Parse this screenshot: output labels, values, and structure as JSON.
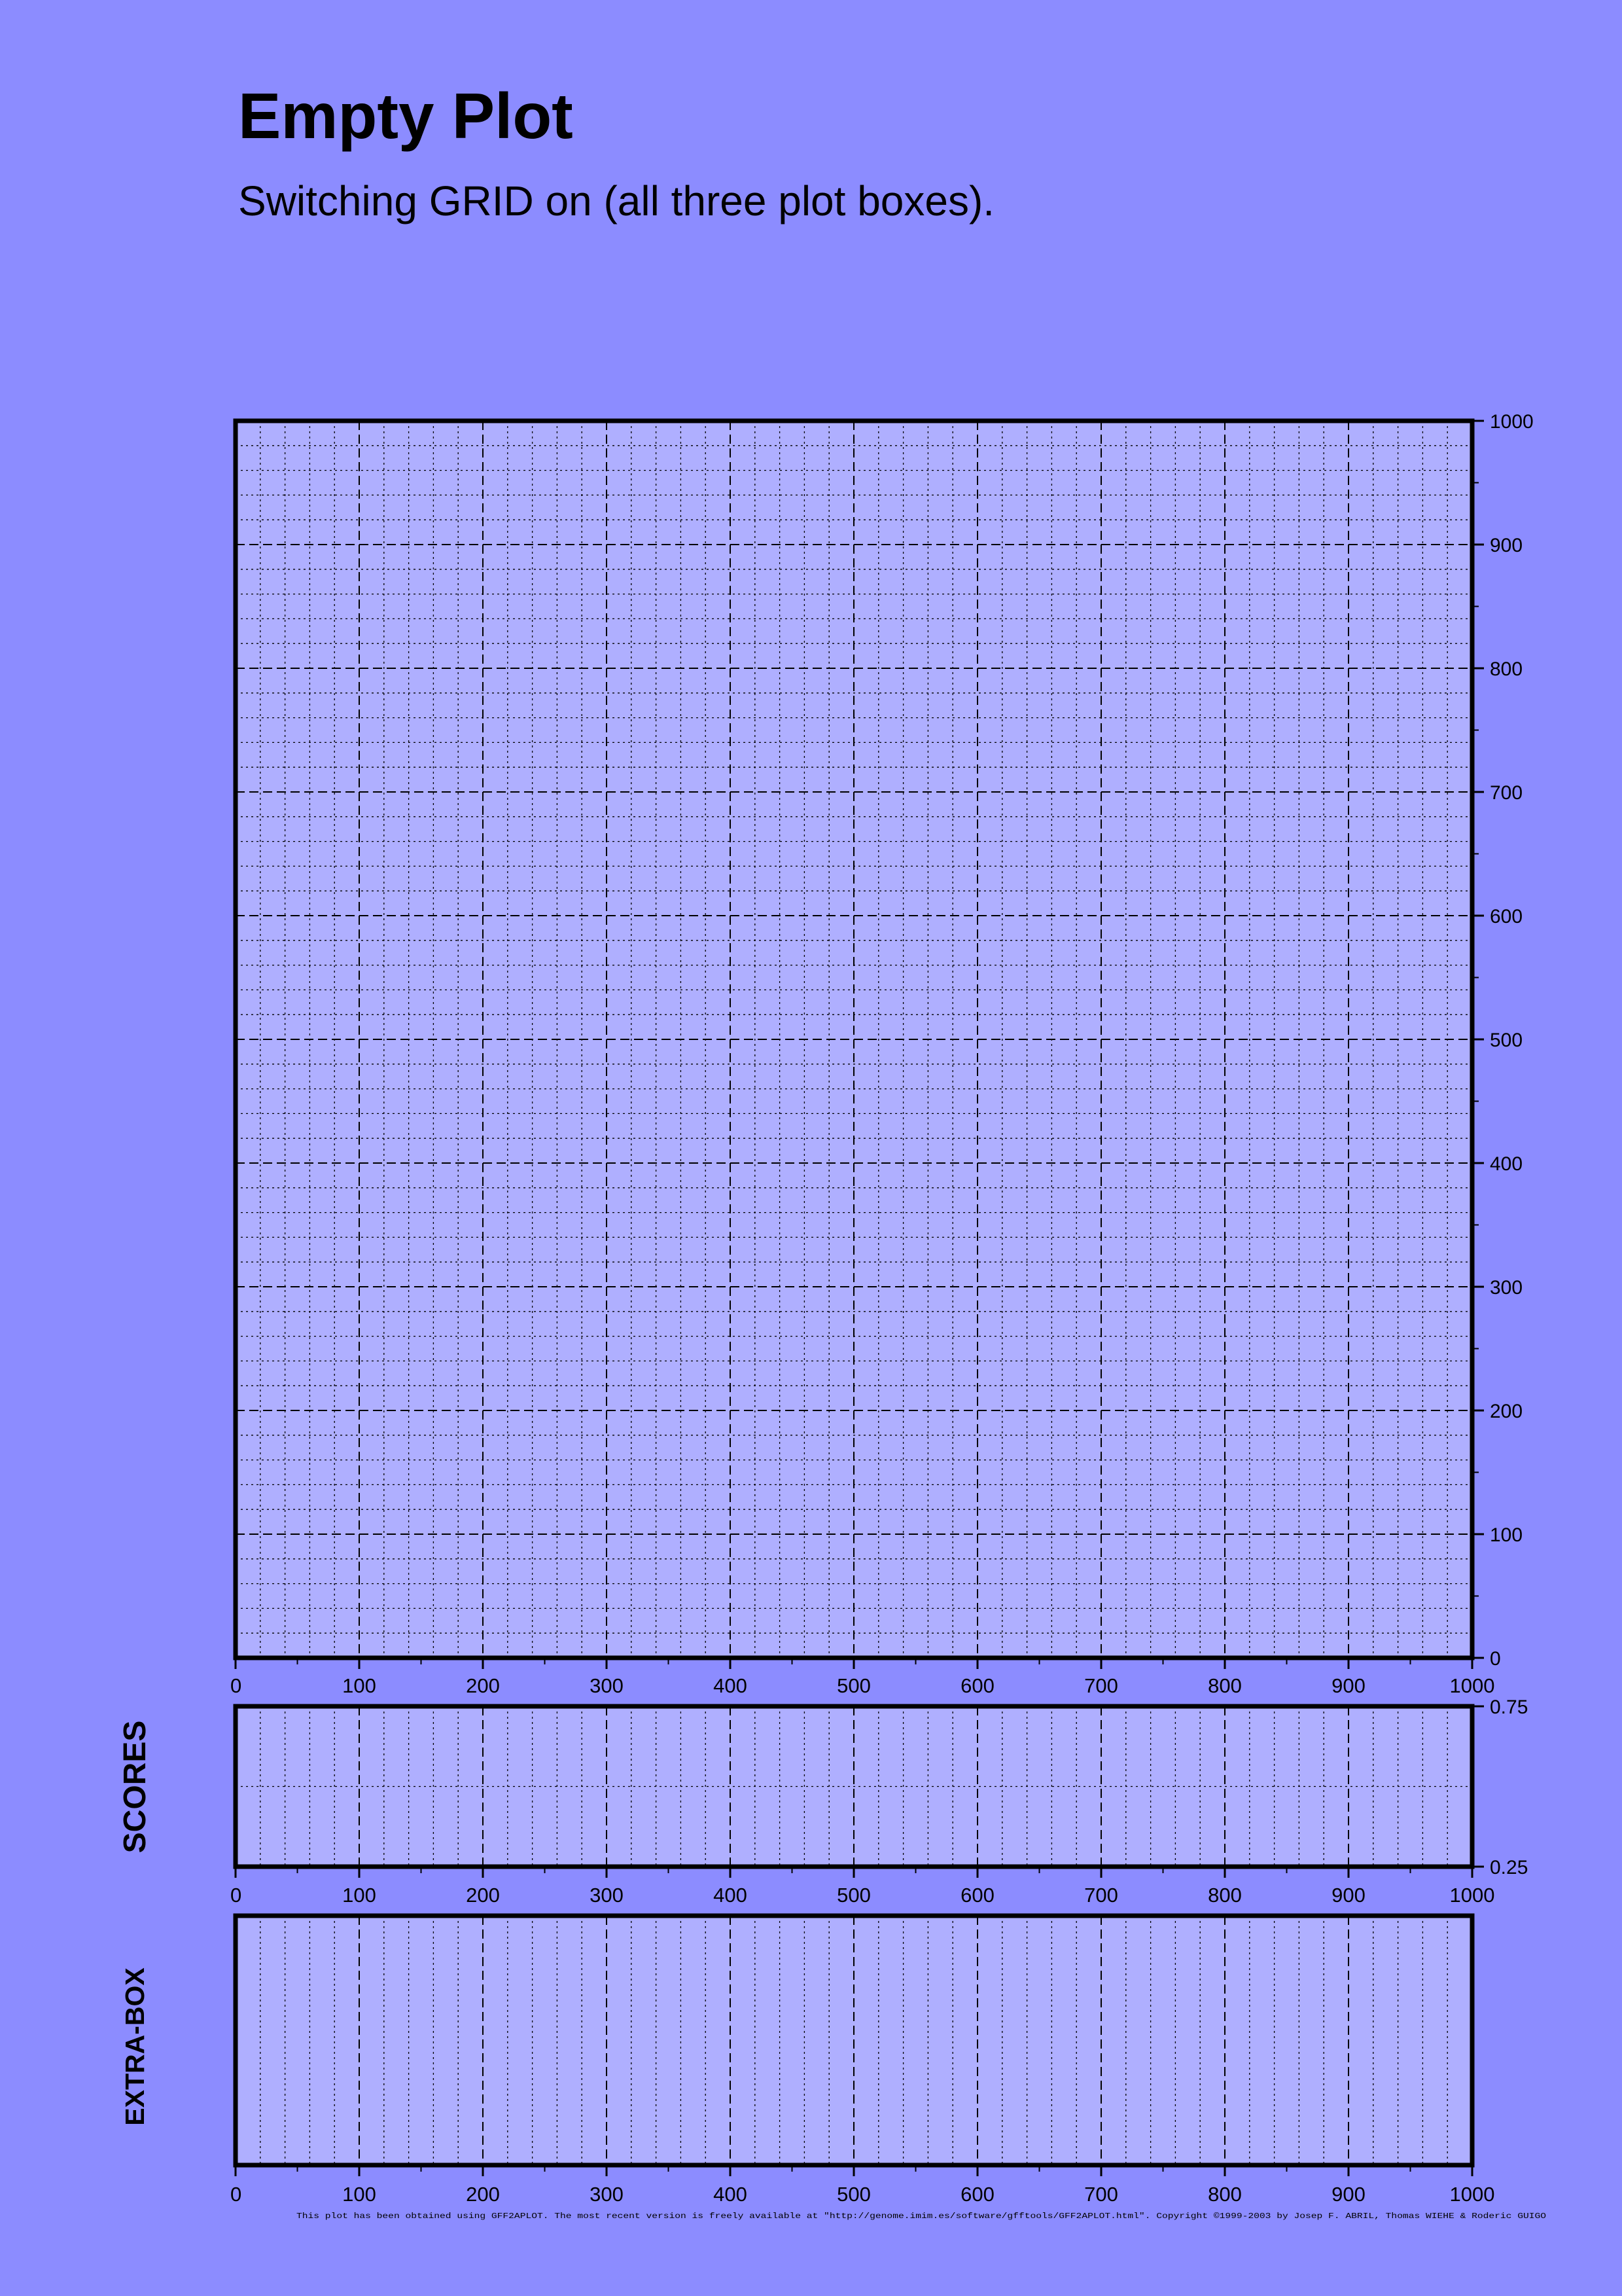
{
  "page": {
    "title": "Empty Plot",
    "subtitle": "Switching GRID on (all three plot boxes).",
    "background_color": "#8c8cff",
    "plot_fill_color": "#afafff",
    "footer": "This plot has been obtained using GFF2APLOT. The most recent version is freely available at \"http://genome.imim.es/software/gfftools/GFF2APLOT.html\". Copyright ©1999-2003 by Josep F. ABRIL, Thomas WIEHE & Roderic GUIGO"
  },
  "chart_data": [
    {
      "id": "main",
      "type": "scatter",
      "title": "",
      "xlabel": "",
      "ylabel": "",
      "xlim": [
        0,
        1000
      ],
      "ylim": [
        0,
        1000
      ],
      "x_ticks": [
        "0",
        "100",
        "200",
        "300",
        "400",
        "500",
        "600",
        "700",
        "800",
        "900",
        "1000"
      ],
      "y_ticks": [
        "0",
        "100",
        "200",
        "300",
        "400",
        "500",
        "600",
        "700",
        "800",
        "900",
        "1000"
      ],
      "y_axis_side": "right",
      "grid": true,
      "minor_grid_step": 20,
      "series": []
    },
    {
      "id": "scores",
      "type": "line",
      "title": "",
      "label": "SCORES",
      "xlim": [
        0,
        1000
      ],
      "ylim": [
        0.25,
        0.75
      ],
      "x_ticks": [
        "0",
        "100",
        "200",
        "300",
        "400",
        "500",
        "600",
        "700",
        "800",
        "900",
        "1000"
      ],
      "y_ticks": [
        "0.25",
        "0.75"
      ],
      "y_axis_side": "right",
      "grid": true,
      "minor_grid_step": 20,
      "series": []
    },
    {
      "id": "extra",
      "type": "line",
      "title": "",
      "label": "EXTRA-BOX",
      "xlim": [
        0,
        1000
      ],
      "x_ticks": [
        "0",
        "100",
        "200",
        "300",
        "400",
        "500",
        "600",
        "700",
        "800",
        "900",
        "1000"
      ],
      "y_ticks": [],
      "grid": true,
      "minor_grid_step": 20,
      "series": []
    }
  ]
}
